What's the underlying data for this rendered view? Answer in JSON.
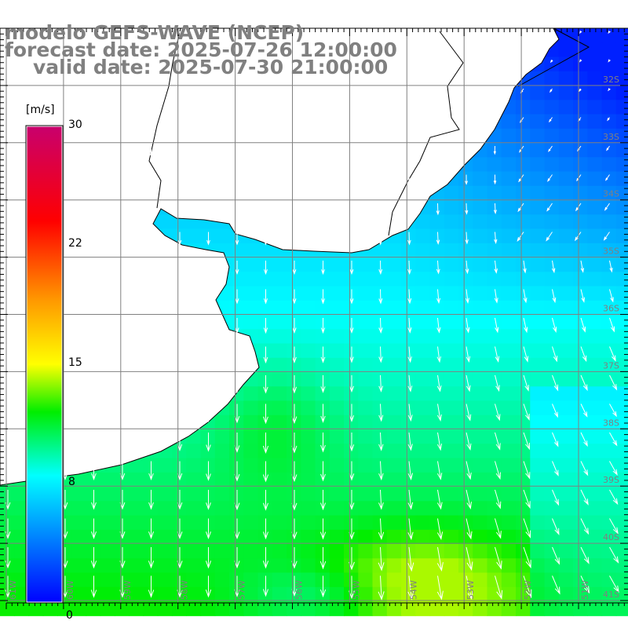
{
  "title": {
    "model": "modelo GEFS-WAVE (NCEP)",
    "forecast": "forecast date: 2025-07-26 12:00:00",
    "valid": "valid date: 2025-07-30 21:00:00"
  },
  "colorbar": {
    "unit": "[m/s]",
    "ticks": [
      "30",
      "22",
      "15",
      "8",
      "0"
    ],
    "range": [
      0,
      30
    ],
    "stops": [
      {
        "v": 0,
        "c": "#0000ff"
      },
      {
        "v": 8,
        "c": "#00ffff"
      },
      {
        "v": 12,
        "c": "#00ee00"
      },
      {
        "v": 15,
        "c": "#ffff00"
      },
      {
        "v": 19,
        "c": "#ff9900"
      },
      {
        "v": 24,
        "c": "#ff0000"
      },
      {
        "v": 30,
        "c": "#c8006e"
      }
    ]
  },
  "axes": {
    "lat_labels": [
      "32S",
      "33S",
      "34S",
      "35S",
      "36S",
      "37S",
      "38S",
      "39S",
      "40S",
      "41S"
    ],
    "lon_labels": [
      "61W",
      "60W",
      "59W",
      "58W",
      "57W",
      "56W",
      "55W",
      "54W",
      "53W",
      "52W",
      "51W"
    ]
  },
  "colors": {
    "grid": "#808080",
    "label": "#808080",
    "land": "#ffffff",
    "coast": "#000000",
    "arrow": "#ffffff"
  }
}
